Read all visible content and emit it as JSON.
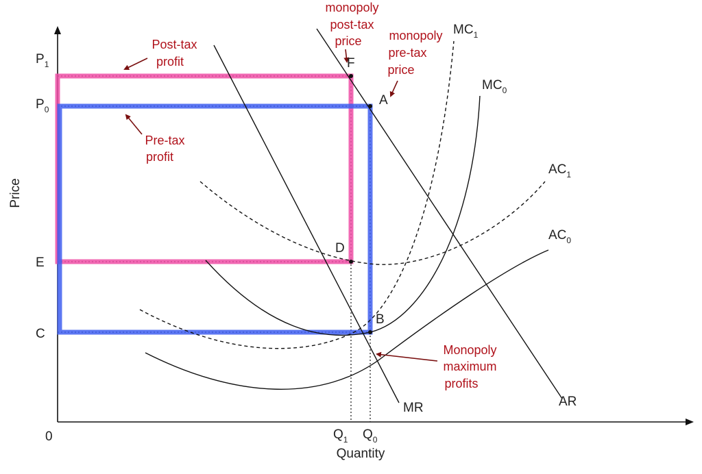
{
  "axes": {
    "y_label": "Price",
    "x_label": "Quantity",
    "origin": "0",
    "p1": {
      "base": "P",
      "sub": "1"
    },
    "p0": {
      "base": "P",
      "sub": "0"
    },
    "e": "E",
    "c": "C",
    "q1": {
      "base": "Q",
      "sub": "1"
    },
    "q0": {
      "base": "Q",
      "sub": "0"
    }
  },
  "curves": {
    "mc1": {
      "base": "MC",
      "sub": "1"
    },
    "mc0": {
      "base": "MC",
      "sub": "0"
    },
    "ac1": {
      "base": "AC",
      "sub": "1"
    },
    "ac0": {
      "base": "AC",
      "sub": "0"
    },
    "ar": "AR",
    "mr": "MR"
  },
  "points": {
    "f": "F",
    "a": "A",
    "d": "D",
    "b": "B"
  },
  "annotations": {
    "post_tax_price": [
      "monopoly",
      "post-tax",
      "price"
    ],
    "pre_tax_price": [
      "monopoly",
      "pre-tax",
      "price"
    ],
    "post_tax_profit": [
      "Post-tax",
      "profit"
    ],
    "pre_tax_profit": [
      "Pre-tax",
      "profit"
    ],
    "max_profits": [
      "Monopoly",
      "maximum",
      "profits"
    ]
  },
  "colors": {
    "post_tax_rect": "#ee4fa6",
    "pre_tax_rect": "#3f5ff0",
    "annotation": "#b0121b",
    "line": "#111111"
  }
}
